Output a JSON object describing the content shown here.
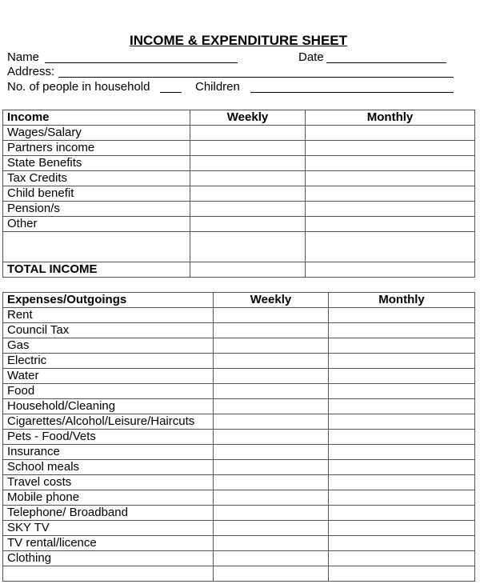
{
  "header": {
    "title": "INCOME & EXPENDITURE SHEET",
    "name_label": "Name",
    "date_label": "Date",
    "address_label": "Address:",
    "household_label": "No. of people in household",
    "children_label": "Children"
  },
  "income_table": {
    "columns": [
      "Income",
      "Weekly",
      "Monthly"
    ],
    "rows": [
      "Wages/Salary",
      "Partners income",
      "State Benefits",
      "Tax Credits",
      "Child benefit",
      "Pension/s",
      "Other"
    ],
    "total": "TOTAL INCOME"
  },
  "expenses_table": {
    "columns": [
      "Expenses/Outgoings",
      "Weekly",
      "Monthly"
    ],
    "rows": [
      "Rent",
      "Council Tax",
      "Gas",
      "Electric",
      "Water",
      "Food",
      "Household/Cleaning",
      "Cigarettes/Alcohol/Leisure/Haircuts",
      "Pets - Food/Vets",
      "Insurance",
      "School meals",
      "Travel costs",
      "Mobile phone",
      "Telephone/ Broadband",
      "SKY TV",
      "TV rental/licence",
      "Clothing"
    ]
  }
}
